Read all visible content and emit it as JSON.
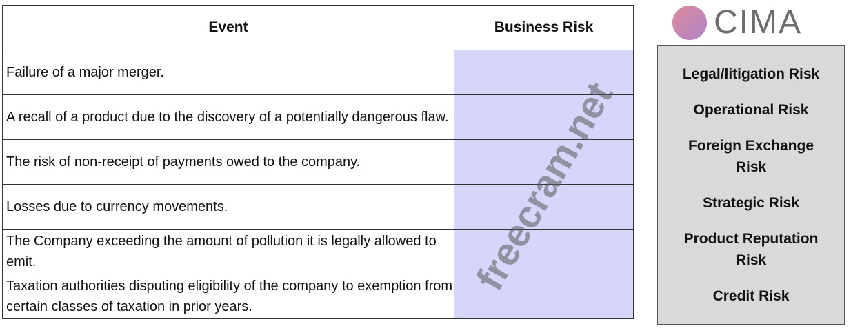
{
  "table": {
    "headers": {
      "event": "Event",
      "risk": "Business Risk"
    },
    "rows": [
      {
        "event": "Failure of a major merger."
      },
      {
        "event": "A recall of a product due to the discovery of a potentially dangerous flaw."
      },
      {
        "event": "The risk of non-receipt of payments owed to the company."
      },
      {
        "event": "Losses due to currency movements."
      },
      {
        "event": "The Company exceeding the amount of pollution it is legally allowed to emit."
      },
      {
        "event": "Taxation authorities disputing eligibility of the company to exemption from certain classes of taxation in prior years."
      }
    ]
  },
  "options": [
    {
      "label": "Legal/litigation Risk"
    },
    {
      "label": "Operational Risk"
    },
    {
      "label": "Foreign Exchange Risk"
    },
    {
      "label": "Strategic Risk"
    },
    {
      "label": "Product Reputation Risk"
    },
    {
      "label": "Credit Risk"
    }
  ],
  "watermark": {
    "site": "freecram.net",
    "logo": "CIMA"
  },
  "colors": {
    "drop_zone": "#d6d6fb",
    "panel": "#d9d9d9"
  }
}
